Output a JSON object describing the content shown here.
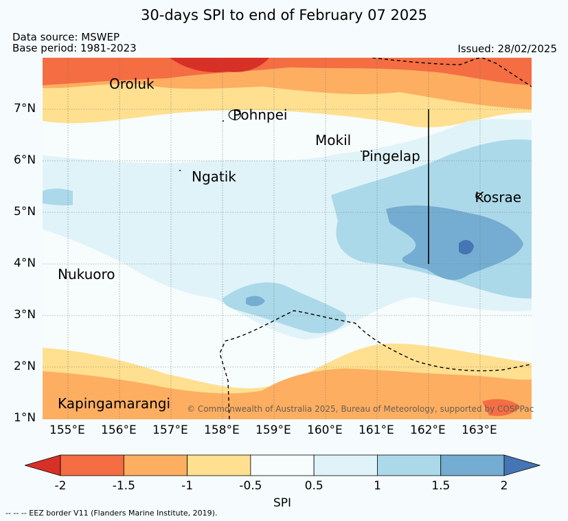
{
  "header": {
    "title": "30-days SPI to end of February 07 2025",
    "data_source": "Data source: MSWEP",
    "base_period": "Base period: 1981-2023",
    "issued": "Issued: 28/02/2025"
  },
  "map": {
    "lat_ticks": [
      {
        "value": 7,
        "label": "7°N"
      },
      {
        "value": 6,
        "label": "6°N"
      },
      {
        "value": 5,
        "label": "5°N"
      },
      {
        "value": 4,
        "label": "4°N"
      },
      {
        "value": 3,
        "label": "3°N"
      },
      {
        "value": 2,
        "label": "2°N"
      },
      {
        "value": 1,
        "label": "1°N"
      }
    ],
    "lon_ticks": [
      {
        "value": 155,
        "label": "155°E"
      },
      {
        "value": 156,
        "label": "156°E"
      },
      {
        "value": 157,
        "label": "157°E"
      },
      {
        "value": 158,
        "label": "158°E"
      },
      {
        "value": 159,
        "label": "159°E"
      },
      {
        "value": 160,
        "label": "160°E"
      },
      {
        "value": 161,
        "label": "161°E"
      },
      {
        "value": 162,
        "label": "162°E"
      },
      {
        "value": 163,
        "label": "163°E"
      }
    ],
    "places": [
      {
        "name": "Oroluk",
        "lon": 155.8,
        "lat": 7.5
      },
      {
        "name": "Pohnpei",
        "lon": 158.2,
        "lat": 6.9
      },
      {
        "name": "Mokil",
        "lon": 159.8,
        "lat": 6.4
      },
      {
        "name": "Pingelap",
        "lon": 160.7,
        "lat": 6.1
      },
      {
        "name": "Ngatik",
        "lon": 157.4,
        "lat": 5.7
      },
      {
        "name": "Kosrae",
        "lon": 162.9,
        "lat": 5.3
      },
      {
        "name": "Nukuoro",
        "lon": 154.8,
        "lat": 3.8
      },
      {
        "name": "Kapingamarangi",
        "lon": 154.8,
        "lat": 1.3
      }
    ],
    "copyright": "© Commonwealth of Australia 2025, Bureau of Meteorology, supported by COSPPac"
  },
  "colorbar": {
    "label": "SPI",
    "ticks": [
      "-2",
      "-1.5",
      "-1",
      "-0.5",
      "0.5",
      "1",
      "1.5",
      "2"
    ],
    "colors": {
      "below_-2": "#d73027",
      "-2_-1.5": "#f46d43",
      "-1.5_-1": "#fdae61",
      "-1_-0.5": "#fee090",
      "-0.5_0.5": "#f7fcfd",
      "0.5_1": "#e0f3f8",
      "1_1.5": "#abd9e9",
      "1.5_2": "#74add1",
      "above_2": "#4575b4"
    }
  },
  "footer": {
    "eez_note": "--  --  -- EEZ border V11 (Flanders Marine Institute, 2019)."
  }
}
